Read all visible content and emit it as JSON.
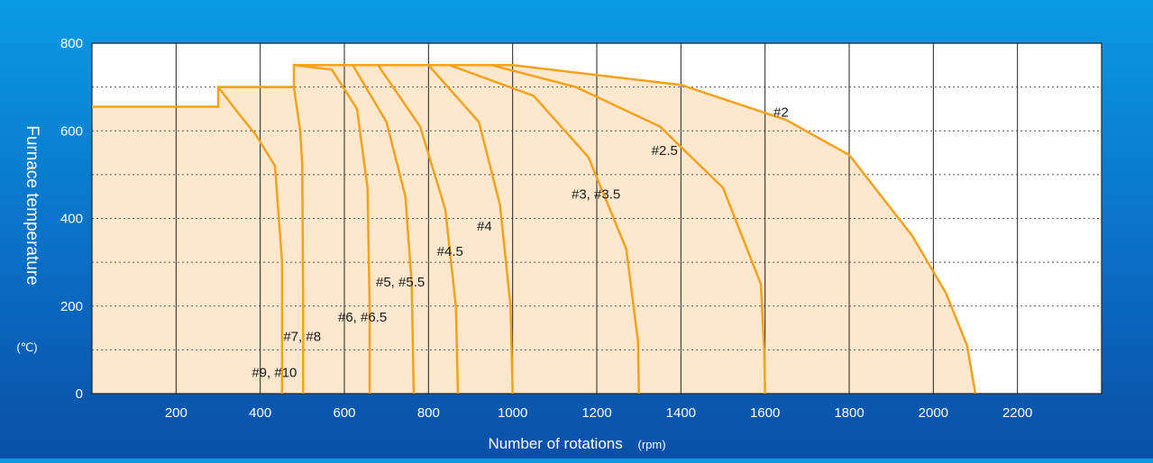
{
  "chart_data": {
    "type": "area",
    "xlabel": "Number of rotations",
    "xunit": "(rpm)",
    "ylabel": "Furnace temperature",
    "yunit": "(℃)",
    "xlim": [
      0,
      2400
    ],
    "ylim": [
      0,
      800
    ],
    "x_ticks": [
      200,
      400,
      600,
      800,
      1000,
      1200,
      1400,
      1600,
      1800,
      2000,
      2200
    ],
    "y_ticks": [
      0,
      200,
      400,
      600,
      800
    ],
    "grid": {
      "vertical": true,
      "horizontal_dotted": [
        100,
        200,
        300,
        400,
        500,
        600,
        700
      ]
    },
    "colors": {
      "curve": "#f3a21c",
      "fill": "#fde8cd",
      "grid": "#222222",
      "dotted": "#555555",
      "label": "#1a1a1a"
    },
    "series": [
      {
        "name": "#2",
        "points": [
          [
            480,
            750
          ],
          [
            1000,
            750
          ],
          [
            1400,
            705
          ],
          [
            1650,
            625
          ],
          [
            1800,
            545
          ],
          [
            1950,
            360
          ],
          [
            2030,
            230
          ],
          [
            2080,
            110
          ],
          [
            2100,
            0
          ]
        ]
      },
      {
        "name": "#2.5",
        "points": [
          [
            480,
            750
          ],
          [
            950,
            750
          ],
          [
            1150,
            700
          ],
          [
            1350,
            610
          ],
          [
            1500,
            470
          ],
          [
            1590,
            250
          ],
          [
            1598,
            100
          ],
          [
            1600,
            0
          ]
        ]
      },
      {
        "name": "#3, #3.5",
        "points": [
          [
            480,
            750
          ],
          [
            850,
            750
          ],
          [
            1050,
            680
          ],
          [
            1180,
            540
          ],
          [
            1270,
            330
          ],
          [
            1298,
            120
          ],
          [
            1300,
            0
          ]
        ]
      },
      {
        "name": "#4",
        "points": [
          [
            480,
            750
          ],
          [
            800,
            750
          ],
          [
            920,
            620
          ],
          [
            970,
            430
          ],
          [
            995,
            200
          ],
          [
            1000,
            0
          ]
        ]
      },
      {
        "name": "#4.5",
        "points": [
          [
            480,
            750
          ],
          [
            680,
            750
          ],
          [
            780,
            610
          ],
          [
            840,
            420
          ],
          [
            865,
            200
          ],
          [
            870,
            0
          ]
        ]
      },
      {
        "name": "#5, #5.5",
        "points": [
          [
            480,
            750
          ],
          [
            620,
            750
          ],
          [
            700,
            620
          ],
          [
            745,
            450
          ],
          [
            760,
            250
          ],
          [
            765,
            0
          ]
        ]
      },
      {
        "name": "#6, #6.5",
        "points": [
          [
            480,
            750
          ],
          [
            570,
            740
          ],
          [
            630,
            650
          ],
          [
            655,
            470
          ],
          [
            660,
            200
          ],
          [
            660,
            0
          ]
        ]
      },
      {
        "name": "#7, #8",
        "points": [
          [
            300,
            700
          ],
          [
            480,
            700
          ],
          [
            495,
            600
          ],
          [
            500,
            520
          ],
          [
            502,
            200
          ],
          [
            502,
            0
          ]
        ]
      },
      {
        "name": "#9, #10",
        "points": [
          [
            300,
            700
          ],
          [
            340,
            650
          ],
          [
            390,
            590
          ],
          [
            435,
            520
          ],
          [
            452,
            300
          ],
          [
            452,
            0
          ]
        ]
      }
    ],
    "envelope": [
      [
        0,
        655
      ],
      [
        300,
        655
      ],
      [
        300,
        700
      ],
      [
        480,
        700
      ],
      [
        480,
        750
      ],
      [
        1000,
        750
      ],
      [
        1400,
        705
      ],
      [
        1650,
        625
      ],
      [
        1800,
        545
      ],
      [
        1950,
        360
      ],
      [
        2030,
        230
      ],
      [
        2080,
        110
      ],
      [
        2100,
        0
      ]
    ],
    "annotations": [
      {
        "text": "#2",
        "x": 1620,
        "y": 632
      },
      {
        "text": "#2.5",
        "x": 1330,
        "y": 545
      },
      {
        "text": "#3, #3.5",
        "x": 1140,
        "y": 445
      },
      {
        "text": "#4",
        "x": 915,
        "y": 372
      },
      {
        "text": "#4.5",
        "x": 820,
        "y": 315
      },
      {
        "text": "#5, #5.5",
        "x": 675,
        "y": 245
      },
      {
        "text": "#6, #6.5",
        "x": 585,
        "y": 165
      },
      {
        "text": "#7, #8",
        "x": 455,
        "y": 120
      },
      {
        "text": "#9, #10",
        "x": 380,
        "y": 38
      }
    ]
  }
}
